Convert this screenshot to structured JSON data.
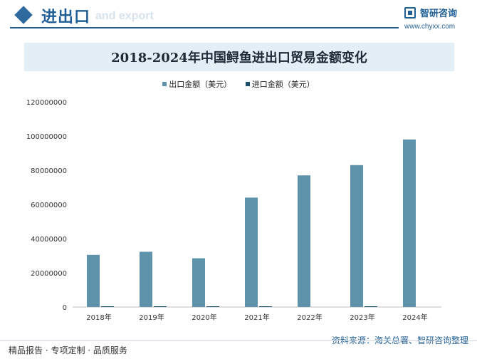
{
  "header": {
    "title": "进出口",
    "subtitle": "and export",
    "brand_name": "智研咨询",
    "brand_url": "www.chyxx.com"
  },
  "footer": {
    "left": "精品报告 · 专项定制 · 品质服务",
    "right": "资料来源：海关总署、智研咨询整理"
  },
  "colors": {
    "accent": "#1f5f95",
    "export_bar": "#5f93ab",
    "import_bar": "#1d4f6e",
    "title_band": "#e3eef6"
  },
  "chart_data": {
    "type": "bar",
    "title": "2018-2024年中国鲟鱼进出口贸易金额变化",
    "xlabel": "",
    "ylabel": "",
    "categories": [
      "2018年",
      "2019年",
      "2020年",
      "2021年",
      "2022年",
      "2023年",
      "2024年"
    ],
    "series": [
      {
        "name": "出口金额（美元）",
        "values": [
          30500000,
          32300000,
          28500000,
          64000000,
          77000000,
          83000000,
          98000000
        ]
      },
      {
        "name": "进口金额（美元）",
        "values": [
          300000,
          200000,
          100000,
          200000,
          0,
          100000,
          0
        ]
      }
    ],
    "ylim": [
      0,
      120000000
    ],
    "yticks": [
      "0",
      "20000000",
      "40000000",
      "60000000",
      "80000000",
      "100000000",
      "120000000"
    ],
    "legend_position": "top-center",
    "grid": false
  }
}
